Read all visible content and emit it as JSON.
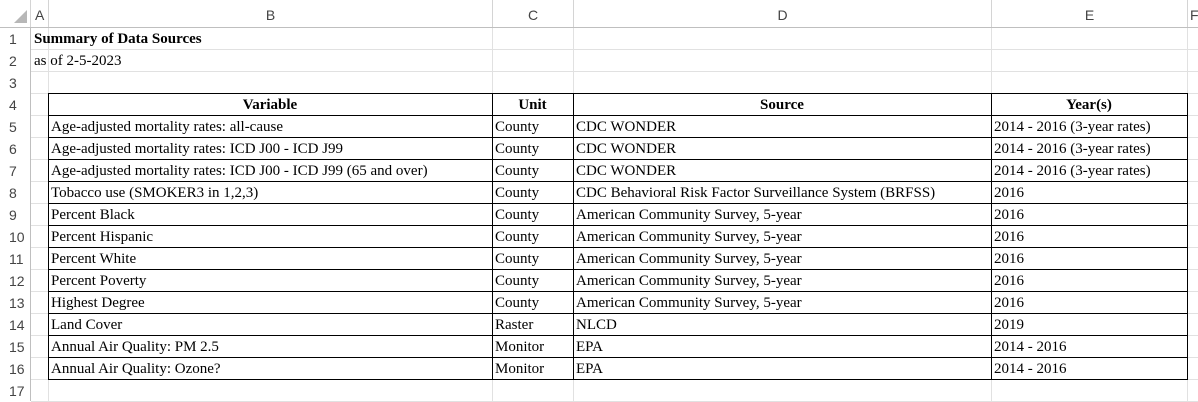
{
  "columns": [
    "A",
    "B",
    "C",
    "D",
    "E",
    "F"
  ],
  "rows": [
    "1",
    "2",
    "3",
    "4",
    "5",
    "6",
    "7",
    "8",
    "9",
    "10",
    "11",
    "12",
    "13",
    "14",
    "15",
    "16",
    "17"
  ],
  "title": "Summary of Data Sources",
  "subtitle": "as of 2-5-2023",
  "table": {
    "headers": [
      "Variable",
      "Unit",
      "Source",
      "Year(s)"
    ],
    "rows": [
      [
        "Age-adjusted mortality rates: all-cause",
        "County",
        "CDC WONDER",
        "2014 - 2016 (3-year rates)"
      ],
      [
        "Age-adjusted mortality rates: ICD J00 - ICD J99",
        "County",
        "CDC WONDER",
        "2014 - 2016 (3-year rates)"
      ],
      [
        "Age-adjusted mortality rates: ICD J00 - ICD J99 (65 and over)",
        "County",
        "CDC WONDER",
        "2014 - 2016 (3-year rates)"
      ],
      [
        "Tobacco use (SMOKER3 in 1,2,3)",
        "County",
        "CDC Behavioral Risk Factor Surveillance System (BRFSS)",
        "2016"
      ],
      [
        "Percent Black",
        "County",
        "American Community Survey, 5-year",
        "2016"
      ],
      [
        "Percent Hispanic",
        "County",
        "American Community Survey, 5-year",
        "2016"
      ],
      [
        "Percent White",
        "County",
        "American Community Survey, 5-year",
        "2016"
      ],
      [
        "Percent Poverty",
        "County",
        "American Community Survey, 5-year",
        "2016"
      ],
      [
        "Highest Degree",
        "County",
        "American Community Survey, 5-year",
        "2016"
      ],
      [
        "Land Cover",
        "Raster",
        "NLCD",
        "2019"
      ],
      [
        "Annual Air Quality: PM 2.5",
        "Monitor",
        "EPA",
        "2014 - 2016"
      ],
      [
        "Annual Air Quality: Ozone?",
        "Monitor",
        "EPA",
        "2014 - 2016"
      ]
    ]
  }
}
